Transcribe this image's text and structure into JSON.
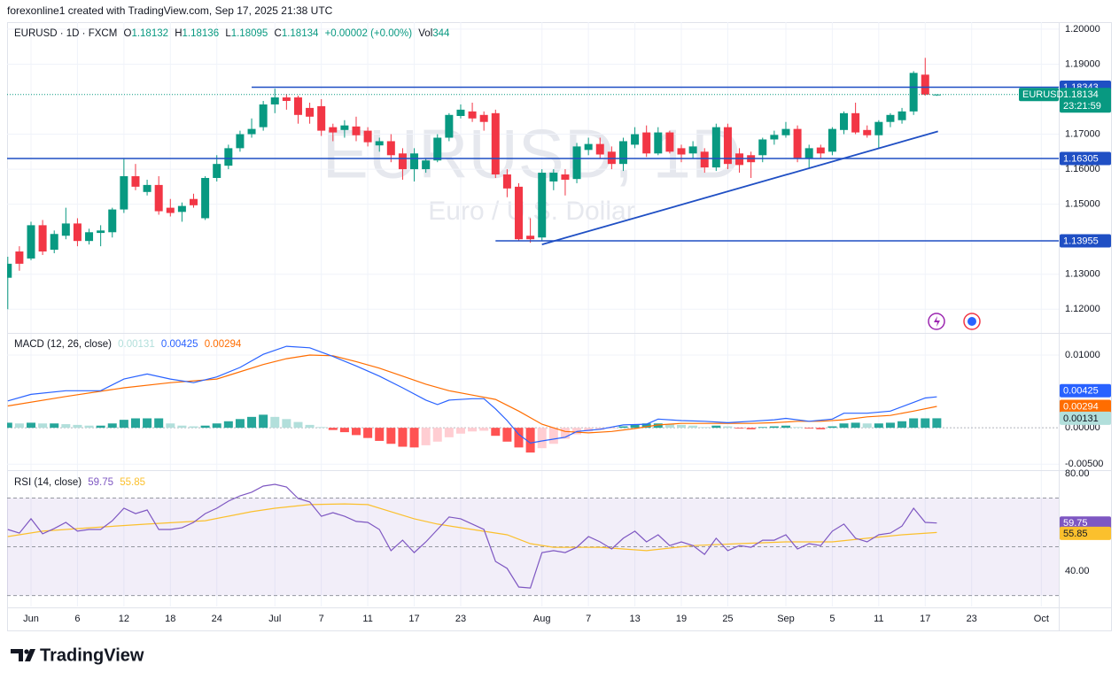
{
  "header": "forexonline1 created with TradingView.com, Sep 17, 2025 21:38 UTC",
  "footer_logo": "TradingView",
  "chart_data": [
    {
      "type": "candlestick",
      "title": "EURUSD · 1D · FXCM",
      "watermark": "EURUSD, 1D",
      "watermark_subtitle": "Euro / U.S. Dollar",
      "legend_labels": {
        "open": "O",
        "high": "H",
        "low": "L",
        "close": "C"
      },
      "change": "+0.00002 (+0.00%)",
      "volume_label": "Vol",
      "volume": 344,
      "symbol_tag": "EURUSD",
      "countdown": "23:21:59",
      "up_color": "#089981",
      "down_color": "#f23645",
      "x": [
        -2,
        -1,
        0,
        1,
        2,
        3,
        4,
        5,
        6,
        7,
        8,
        9,
        10,
        11,
        12,
        13,
        14,
        15,
        16,
        17,
        18,
        19,
        20,
        21,
        22,
        23,
        24,
        25,
        26,
        27,
        28,
        29,
        30,
        31,
        32,
        33,
        34,
        35,
        36,
        37,
        38,
        39,
        40,
        41,
        42,
        43,
        44,
        45,
        46,
        47,
        48,
        49,
        50,
        51,
        52,
        53,
        54,
        55,
        56,
        57,
        58,
        59,
        60,
        61,
        62,
        63,
        64,
        65,
        66,
        67,
        68,
        69,
        70,
        71,
        72,
        73,
        74,
        75,
        76,
        77,
        78
      ],
      "open": [
        1.129,
        1.1365,
        1.1345,
        1.144,
        1.137,
        1.141,
        1.1445,
        1.1395,
        1.1418,
        1.142,
        1.1485,
        1.158,
        1.1535,
        1.1555,
        1.149,
        1.1478,
        1.1515,
        1.146,
        1.1575,
        1.161,
        1.166,
        1.17,
        1.172,
        1.1785,
        1.1805,
        1.1805,
        1.1775,
        1.178,
        1.172,
        1.1712,
        1.1722,
        1.171,
        1.1668,
        1.168,
        1.1645,
        1.16,
        1.16,
        1.1625,
        1.169,
        1.1752,
        1.1765,
        1.1755,
        1.176,
        1.1585,
        1.155,
        1.141,
        1.1405,
        1.1565,
        1.1585,
        1.1572,
        1.1655,
        1.1672,
        1.165,
        1.1615,
        1.167,
        1.1705,
        1.1645,
        1.1705,
        1.166,
        1.1645,
        1.165,
        1.1605,
        1.172,
        1.1645,
        1.164,
        1.164,
        1.1685,
        1.1697,
        1.1715,
        1.163,
        1.1662,
        1.165,
        1.1712,
        1.176,
        1.1712,
        1.1697,
        1.1735,
        1.174,
        1.1765,
        1.187,
        1.18132
      ],
      "high": [
        1.135,
        1.138,
        1.145,
        1.1455,
        1.1425,
        1.149,
        1.146,
        1.143,
        1.144,
        1.149,
        1.163,
        1.1615,
        1.157,
        1.158,
        1.1515,
        1.1505,
        1.153,
        1.158,
        1.164,
        1.167,
        1.171,
        1.1745,
        1.1795,
        1.183,
        1.1815,
        1.181,
        1.179,
        1.18,
        1.173,
        1.174,
        1.175,
        1.172,
        1.169,
        1.17,
        1.166,
        1.166,
        1.163,
        1.17,
        1.176,
        1.1785,
        1.179,
        1.1765,
        1.177,
        1.16,
        1.156,
        1.146,
        1.16,
        1.16,
        1.16,
        1.1675,
        1.169,
        1.169,
        1.1665,
        1.169,
        1.172,
        1.1725,
        1.172,
        1.171,
        1.167,
        1.168,
        1.166,
        1.173,
        1.173,
        1.166,
        1.165,
        1.169,
        1.171,
        1.1735,
        1.1725,
        1.167,
        1.167,
        1.172,
        1.1765,
        1.179,
        1.1725,
        1.174,
        1.176,
        1.1775,
        1.188,
        1.1918,
        1.18136
      ],
      "low": [
        1.12,
        1.131,
        1.134,
        1.1355,
        1.136,
        1.14,
        1.138,
        1.1385,
        1.138,
        1.1405,
        1.1475,
        1.154,
        1.1525,
        1.147,
        1.1465,
        1.145,
        1.149,
        1.1455,
        1.1565,
        1.16,
        1.165,
        1.169,
        1.171,
        1.176,
        1.177,
        1.173,
        1.173,
        1.1695,
        1.168,
        1.169,
        1.168,
        1.1665,
        1.165,
        1.162,
        1.157,
        1.1565,
        1.159,
        1.162,
        1.168,
        1.1745,
        1.1735,
        1.171,
        1.1575,
        1.152,
        1.1395,
        1.139,
        1.1395,
        1.154,
        1.1525,
        1.156,
        1.164,
        1.163,
        1.16,
        1.1595,
        1.166,
        1.1635,
        1.164,
        1.1645,
        1.162,
        1.163,
        1.159,
        1.1595,
        1.16,
        1.159,
        1.1575,
        1.162,
        1.167,
        1.169,
        1.162,
        1.1605,
        1.163,
        1.164,
        1.17,
        1.17,
        1.169,
        1.166,
        1.172,
        1.173,
        1.1755,
        1.181,
        1.18095
      ],
      "close": [
        1.133,
        1.133,
        1.144,
        1.1365,
        1.1415,
        1.1445,
        1.1395,
        1.142,
        1.1425,
        1.1485,
        1.158,
        1.155,
        1.1555,
        1.148,
        1.1475,
        1.1495,
        1.1497,
        1.1575,
        1.1615,
        1.166,
        1.17,
        1.1715,
        1.1785,
        1.1805,
        1.1795,
        1.1755,
        1.175,
        1.171,
        1.1705,
        1.1725,
        1.1697,
        1.1677,
        1.168,
        1.164,
        1.16,
        1.1645,
        1.1625,
        1.169,
        1.1755,
        1.177,
        1.1745,
        1.1735,
        1.1585,
        1.1545,
        1.14,
        1.14,
        1.159,
        1.159,
        1.157,
        1.1665,
        1.1672,
        1.1642,
        1.1615,
        1.168,
        1.17,
        1.1645,
        1.1705,
        1.165,
        1.1642,
        1.1665,
        1.1605,
        1.172,
        1.1615,
        1.1612,
        1.162,
        1.1685,
        1.1698,
        1.1715,
        1.1632,
        1.166,
        1.1645,
        1.1715,
        1.176,
        1.1705,
        1.1697,
        1.1735,
        1.1755,
        1.1765,
        1.1875,
        1.1813,
        1.18134
      ],
      "xlim": [
        -2.06,
        88.5
      ],
      "ylim": [
        1.1135,
        1.202
      ],
      "yticks": [
        {
          "value": 1.2,
          "label": "1.20000"
        },
        {
          "value": 1.19,
          "label": "1.19000"
        },
        {
          "value": 1.17,
          "label": "1.17000"
        },
        {
          "value": 1.16,
          "label": "1.16000"
        },
        {
          "value": 1.15,
          "label": "1.15000"
        },
        {
          "value": 1.13,
          "label": "1.13000"
        },
        {
          "value": 1.12,
          "label": "1.12000"
        }
      ],
      "xticks": [
        {
          "value": 0,
          "label": "Jun"
        },
        {
          "value": 4,
          "label": "6"
        },
        {
          "value": 8,
          "label": "12"
        },
        {
          "value": 12,
          "label": "18"
        },
        {
          "value": 16,
          "label": "24"
        },
        {
          "value": 21,
          "label": "Jul"
        },
        {
          "value": 25,
          "label": "7"
        },
        {
          "value": 29,
          "label": "11"
        },
        {
          "value": 33,
          "label": "17"
        },
        {
          "value": 37,
          "label": "23"
        },
        {
          "value": 44,
          "label": "Aug"
        },
        {
          "value": 48,
          "label": "7"
        },
        {
          "value": 52,
          "label": "13"
        },
        {
          "value": 56,
          "label": "19"
        },
        {
          "value": 60,
          "label": "25"
        },
        {
          "value": 65,
          "label": "Sep"
        },
        {
          "value": 69,
          "label": "5"
        },
        {
          "value": 73,
          "label": "11"
        },
        {
          "value": 77,
          "label": "17"
        },
        {
          "value": 81,
          "label": "23"
        },
        {
          "value": 87,
          "label": "Oct"
        }
      ],
      "grid": true,
      "level_color": "#1f4fc4",
      "levels": [
        {
          "value": 1.18343,
          "from": 19
        },
        {
          "value": 1.16305,
          "from": -2.06
        },
        {
          "value": 1.13955,
          "from": 40
        }
      ],
      "trendline": {
        "x": [
          44,
          78.1
        ],
        "values": [
          1.1385,
          1.1708
        ]
      }
    },
    {
      "type": "macd",
      "title": "MACD (12, 26, close)",
      "ylim": [
        -0.0057,
        0.0128
      ],
      "yticks": [
        {
          "value": 0.01,
          "label": "0.01000"
        },
        {
          "value": 0,
          "label": "0.00000"
        },
        {
          "value": -0.005,
          "label": "-0.00500"
        }
      ],
      "histogram": {
        "colors": {
          "up_rising": "#26a69a",
          "up_falling": "#b2dfdb",
          "down_falling": "#ff5252",
          "down_rising": "#ffcdd2"
        },
        "values": [
          0.0007,
          0.0006,
          0.0007,
          0.0006,
          0.0006,
          0.0005,
          0.0004,
          0.0003,
          0.0003,
          0.0006,
          0.0011,
          0.0013,
          0.0013,
          0.0013,
          0.0006,
          0.0003,
          0.0002,
          0.0003,
          0.0006,
          0.0009,
          0.0012,
          0.0015,
          0.0018,
          0.0015,
          0.0012,
          0.0008,
          0.0004,
          0.0001,
          -0.0003,
          -0.0006,
          -0.001,
          -0.0014,
          -0.0018,
          -0.0022,
          -0.0026,
          -0.0027,
          -0.0024,
          -0.0019,
          -0.0013,
          -0.0008,
          -0.0005,
          -0.0004,
          -0.0011,
          -0.0019,
          -0.0027,
          -0.0034,
          -0.0028,
          -0.0022,
          -0.0015,
          -0.0009,
          -0.0005,
          -0.0003,
          -0.0001,
          0.0002,
          0.0005,
          0.0006,
          0.0006,
          0.0005,
          0.0004,
          0.0003,
          0.0001,
          0.0003,
          0.0002,
          -0.0001,
          -0.0002,
          0.0001,
          0.0002,
          0.0003,
          0.0001,
          -0.0001,
          -0.0002,
          0.0002,
          0.0006,
          0.0007,
          0.0006,
          0.0006,
          0.0007,
          0.0009,
          0.0013,
          0.0013,
          0.00131
        ]
      },
      "macd": {
        "color": "#2962ff",
        "x": [
          -2,
          0,
          3,
          6,
          8,
          10,
          12,
          14,
          16,
          18,
          20,
          22,
          24,
          26,
          28,
          30,
          32,
          34,
          35,
          36,
          38,
          39,
          40,
          41,
          42,
          43,
          44,
          46,
          47,
          49,
          51,
          53,
          54,
          56,
          58,
          60,
          62,
          64,
          65,
          67,
          69,
          70,
          72,
          74,
          76,
          77,
          78
        ],
        "values": [
          0.0037,
          0.0046,
          0.0051,
          0.0051,
          0.0067,
          0.0074,
          0.0067,
          0.0062,
          0.007,
          0.0083,
          0.0101,
          0.0112,
          0.011,
          0.0098,
          0.0085,
          0.0071,
          0.0055,
          0.0038,
          0.0032,
          0.0038,
          0.004,
          0.004,
          0.0026,
          0.001,
          -0.0009,
          -0.0021,
          -0.0018,
          -0.0013,
          -0.0005,
          -0.0002,
          0.0004,
          0.0005,
          0.0012,
          0.001,
          0.0009,
          0.0007,
          0.0009,
          0.0011,
          0.0013,
          0.0009,
          0.0012,
          0.002,
          0.002,
          0.0023,
          0.0035,
          0.0041,
          0.00425
        ]
      },
      "signal": {
        "color": "#ff6d00",
        "x": [
          -2,
          3,
          8,
          12,
          16,
          20,
          22,
          24,
          26,
          28,
          30,
          32,
          34,
          36,
          38,
          40,
          42,
          44,
          46,
          48,
          50,
          52,
          54,
          56,
          58,
          60,
          62,
          64,
          66,
          68,
          70,
          72,
          74,
          76,
          78
        ],
        "values": [
          0.003,
          0.0043,
          0.0055,
          0.0062,
          0.0067,
          0.0087,
          0.0095,
          0.01,
          0.0099,
          0.0091,
          0.0082,
          0.0071,
          0.006,
          0.0051,
          0.0045,
          0.0039,
          0.0023,
          0.0005,
          -0.0005,
          -0.0007,
          -0.0005,
          -0.0001,
          0.0004,
          0.0006,
          0.0006,
          0.0006,
          0.0006,
          0.0007,
          0.0009,
          0.0009,
          0.0011,
          0.0015,
          0.0017,
          0.0023,
          0.00294
        ]
      }
    },
    {
      "type": "rsi",
      "title": "RSI (14, close)",
      "ylim": [
        25.5,
        80.7
      ],
      "yticks": [
        {
          "value": 80,
          "label": "80.00"
        },
        {
          "value": 40,
          "label": "40.00"
        }
      ],
      "bands": [
        70,
        50,
        30
      ],
      "band_fill": "rgba(126,87,194,0.1)",
      "rsi": {
        "color": "#7e57c2",
        "values": [
          57.1,
          55.6,
          61.5,
          55.3,
          57.5,
          60.0,
          56.4,
          57.1,
          57.1,
          60.7,
          65.8,
          63.6,
          65.1,
          57.1,
          57.1,
          57.8,
          60.0,
          63.6,
          65.8,
          68.7,
          70.9,
          72.4,
          74.9,
          75.6,
          74.5,
          69.8,
          68.4,
          62.5,
          64.0,
          62.5,
          60.4,
          60.0,
          57.1,
          48.4,
          52.7,
          47.6,
          52.0,
          57.1,
          62.2,
          61.5,
          59.3,
          57.1,
          44.0,
          41.1,
          33.5,
          33.1,
          47.6,
          48.4,
          47.6,
          49.8,
          54.2,
          52.0,
          49.1,
          53.5,
          56.4,
          52.0,
          54.9,
          50.5,
          52.0,
          50.5,
          46.9,
          53.5,
          48.4,
          50.5,
          49.8,
          52.7,
          52.7,
          54.9,
          49.1,
          51.3,
          50.5,
          56.4,
          59.3,
          53.5,
          52.0,
          54.9,
          55.6,
          58.5,
          65.8,
          60.0,
          59.75
        ]
      },
      "ma": {
        "color": "#fbc02d",
        "x": [
          -2,
          1,
          5,
          10,
          15,
          19,
          21,
          24,
          27,
          29,
          31,
          33,
          35,
          38,
          41,
          43,
          45,
          49,
          53,
          57,
          61,
          65,
          69,
          72,
          75,
          78
        ],
        "values": [
          54.2,
          56.4,
          57.8,
          59.3,
          60.7,
          64.4,
          65.8,
          67.3,
          67.6,
          67.3,
          64.4,
          61.5,
          59.3,
          57.1,
          54.9,
          51.3,
          49.8,
          49.8,
          48.4,
          50.5,
          51.3,
          52.0,
          52.0,
          53.5,
          54.9,
          55.85
        ]
      }
    }
  ]
}
